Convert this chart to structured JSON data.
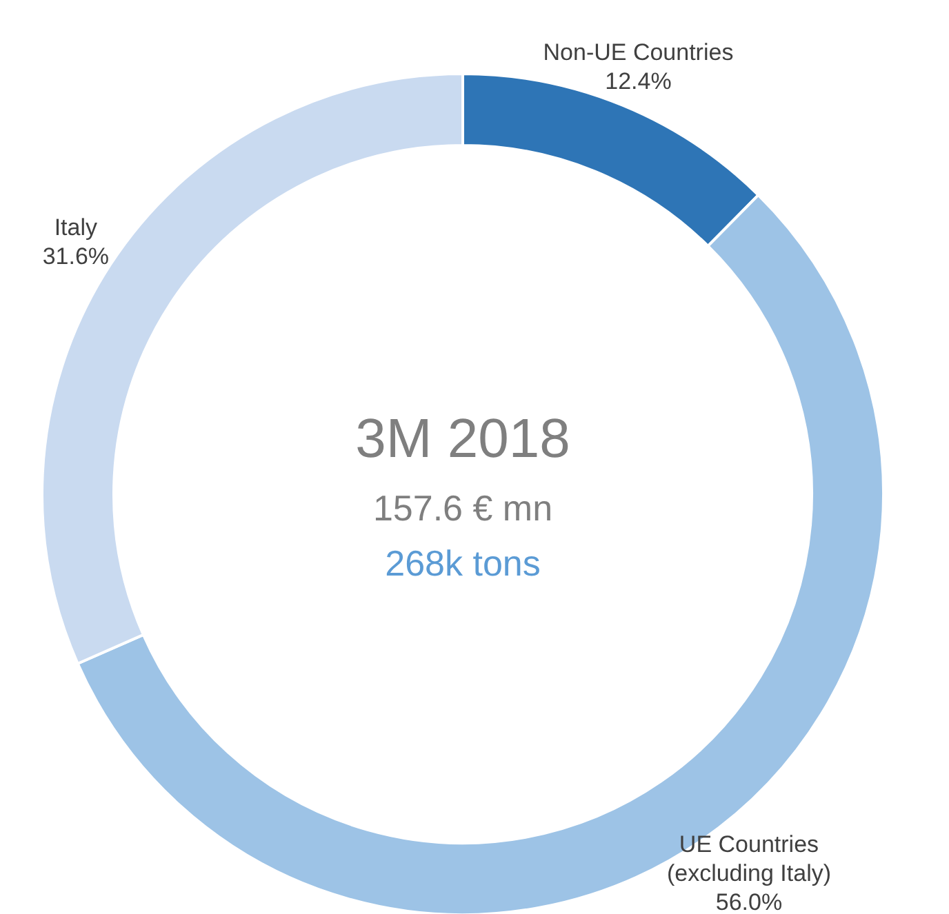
{
  "chart_data": {
    "type": "donut",
    "categories": [
      "Non-UE Countries",
      "UE Countries (excluding Italy)",
      "Italy"
    ],
    "values": [
      12.4,
      56.0,
      31.6
    ],
    "colors": [
      "#2e75b6",
      "#9dc3e6",
      "#c9daf0"
    ],
    "value_labels": [
      "12.4%",
      "56.0%",
      "31.6%"
    ],
    "annotations": [
      "3M 2018",
      "157.6 € mn",
      "268k tons"
    ]
  }
}
